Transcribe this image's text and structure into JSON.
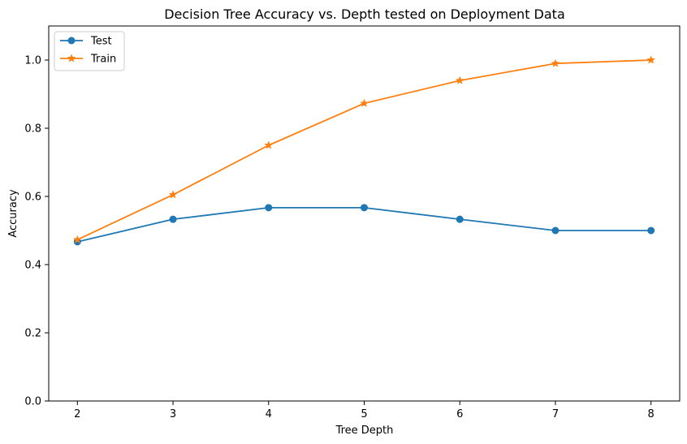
{
  "chart_data": {
    "type": "line",
    "title": "Decision Tree Accuracy vs. Depth tested on Deployment Data",
    "xlabel": "Tree Depth",
    "ylabel": "Accuracy",
    "x": [
      2,
      3,
      4,
      5,
      6,
      7,
      8
    ],
    "xlim": [
      1.7,
      8.3
    ],
    "ylim": [
      0,
      1.1
    ],
    "xticks": [
      2,
      3,
      4,
      5,
      6,
      7,
      8
    ],
    "yticks": [
      "0.0",
      "0.2",
      "0.4",
      "0.6",
      "0.8",
      "1.0"
    ],
    "grid": false,
    "legend": "top-left",
    "series": [
      {
        "name": "Test",
        "color": "#1f77b4",
        "marker": "circle",
        "values": [
          0.467,
          0.533,
          0.567,
          0.567,
          0.533,
          0.5,
          0.5
        ]
      },
      {
        "name": "Train",
        "color": "#ff7f0e",
        "marker": "star",
        "values": [
          0.473,
          0.605,
          0.75,
          0.873,
          0.94,
          0.99,
          1.0
        ]
      }
    ]
  }
}
